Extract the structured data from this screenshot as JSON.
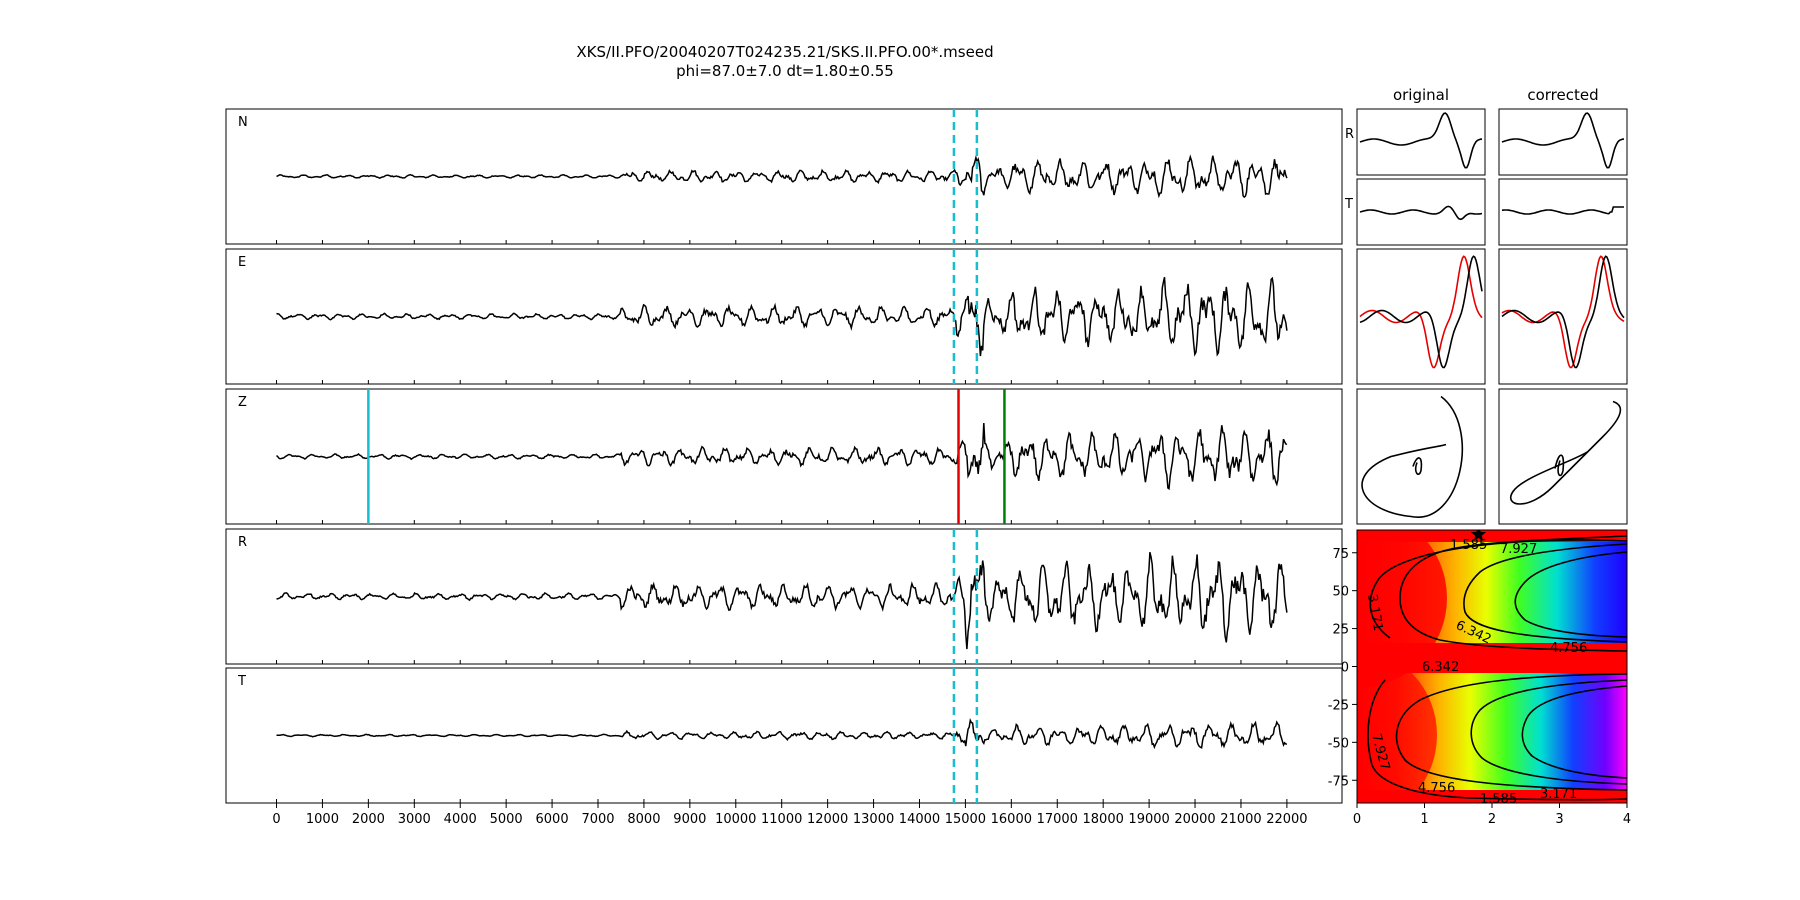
{
  "title": {
    "line1": "XKS/II.PFO/20040207T024235.21/SKS.II.PFO.00*.mseed",
    "line2": "phi=87.0±7.0 dt=1.80±0.55"
  },
  "chart_data": [
    {
      "type": "line",
      "name": "waveforms",
      "traces": [
        {
          "label": "N",
          "amplitude": 0.35
        },
        {
          "label": "E",
          "amplitude": 0.6
        },
        {
          "label": "Z",
          "amplitude": 0.5
        },
        {
          "label": "R",
          "amplitude": 0.7
        },
        {
          "label": "T",
          "amplitude": 0.22
        }
      ],
      "xlim": [
        -1100,
        23200
      ],
      "xticks": [
        0,
        1000,
        2000,
        3000,
        4000,
        5000,
        6000,
        7000,
        8000,
        9000,
        10000,
        11000,
        12000,
        13000,
        14000,
        15000,
        16000,
        17000,
        18000,
        19000,
        20000,
        21000,
        22000
      ],
      "window_markers": {
        "color": "#17becf",
        "style": "dashed",
        "x": [
          14750,
          15250
        ],
        "traces": [
          "N",
          "E",
          "R",
          "T"
        ]
      },
      "z_markers": [
        {
          "x": 2000,
          "color": "#17becf"
        },
        {
          "x": 14850,
          "color": "#e50000"
        },
        {
          "x": 15850,
          "color": "#008000"
        }
      ]
    },
    {
      "type": "line",
      "name": "particle-motion",
      "column_titles": [
        "original",
        "corrected"
      ],
      "row_labels": [
        "R",
        "T"
      ],
      "series_colors": [
        "#000000",
        "#e50000"
      ]
    },
    {
      "type": "heatmap",
      "name": "error-surface",
      "xlim": [
        0,
        4
      ],
      "ylim": [
        -90,
        90
      ],
      "xticks": [
        0,
        1,
        2,
        3,
        4
      ],
      "yticks": [
        75,
        50,
        25,
        0,
        -25,
        -50,
        -75
      ],
      "contour_labels": [
        "1.585",
        "7.927",
        "3.171",
        "6.342",
        "4.756",
        "6.342",
        "7.927",
        "4.756",
        "1.585",
        "3.171"
      ],
      "minimum": {
        "dt": 1.8,
        "phi": 87
      }
    }
  ]
}
